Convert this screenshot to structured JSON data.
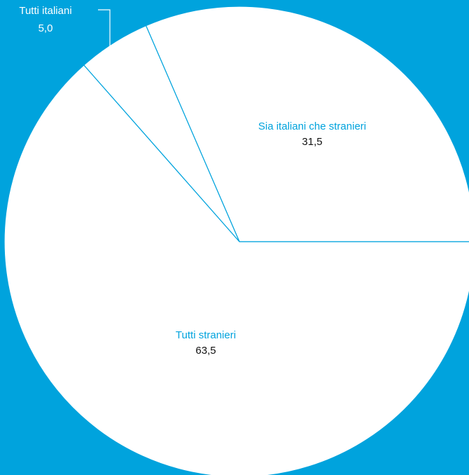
{
  "colors": {
    "background": "#00a3dd",
    "slice_fill": "#ffffff",
    "label_name": "#00a3dd",
    "label_value": "#111111"
  },
  "chart_data": {
    "type": "pie",
    "title": "",
    "slices": [
      {
        "label": "Sia italiani che stranieri",
        "value": 31.5,
        "value_label": "31,5"
      },
      {
        "label": "Tutti italiani",
        "value": 5.0,
        "value_label": "5,0"
      },
      {
        "label": "Tutti stranieri",
        "value": 63.5,
        "value_label": "63,5"
      }
    ]
  }
}
